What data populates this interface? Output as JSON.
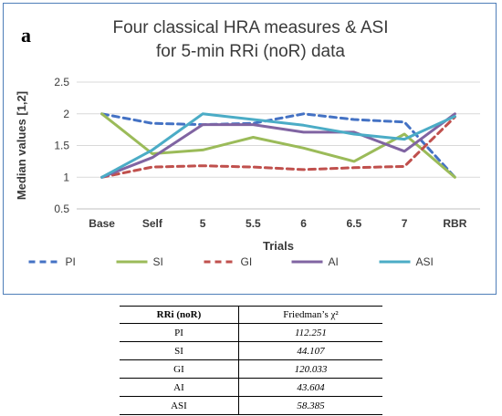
{
  "panel_label": "a",
  "chart_data": {
    "type": "line",
    "title_line1": "Four classical HRA measures & ASI",
    "title_line2": "for 5-min RRi (noR) data",
    "xlabel": "Trials",
    "ylabel": "Median values [1,2]",
    "categories": [
      "Base",
      "Self",
      "5",
      "5.5",
      "6",
      "6.5",
      "7",
      "RBR"
    ],
    "ylim": [
      0.5,
      2.5
    ],
    "yticks": [
      "0.5",
      "1",
      "1.5",
      "2",
      "2.5"
    ],
    "legend_position": "bottom",
    "series": [
      {
        "name": "PI",
        "color": "#4472c4",
        "dash": true,
        "values": [
          2.0,
          1.85,
          1.83,
          1.85,
          2.0,
          1.91,
          1.87,
          1.0
        ]
      },
      {
        "name": "SI",
        "color": "#9bbb59",
        "dash": false,
        "values": [
          2.0,
          1.37,
          1.43,
          1.63,
          1.46,
          1.25,
          1.68,
          1.0
        ]
      },
      {
        "name": "GI",
        "color": "#c0504d",
        "dash": true,
        "values": [
          1.0,
          1.16,
          1.18,
          1.16,
          1.12,
          1.15,
          1.17,
          1.95
        ]
      },
      {
        "name": "AI",
        "color": "#8064a2",
        "dash": false,
        "values": [
          1.0,
          1.31,
          1.83,
          1.83,
          1.71,
          1.71,
          1.41,
          2.0
        ]
      },
      {
        "name": "ASI",
        "color": "#4bacc6",
        "dash": false,
        "values": [
          1.0,
          1.43,
          2.0,
          1.91,
          1.82,
          1.68,
          1.6,
          1.96
        ]
      }
    ]
  },
  "table": {
    "col1_header": "RRi (noR)",
    "col2_header": "Friedman’s χ²",
    "rows": [
      {
        "label": "PI",
        "value": "112.251"
      },
      {
        "label": "SI",
        "value": "44.107"
      },
      {
        "label": "GI",
        "value": "120.033"
      },
      {
        "label": "AI",
        "value": "43.604"
      },
      {
        "label": "ASI",
        "value": "58.385"
      }
    ]
  }
}
